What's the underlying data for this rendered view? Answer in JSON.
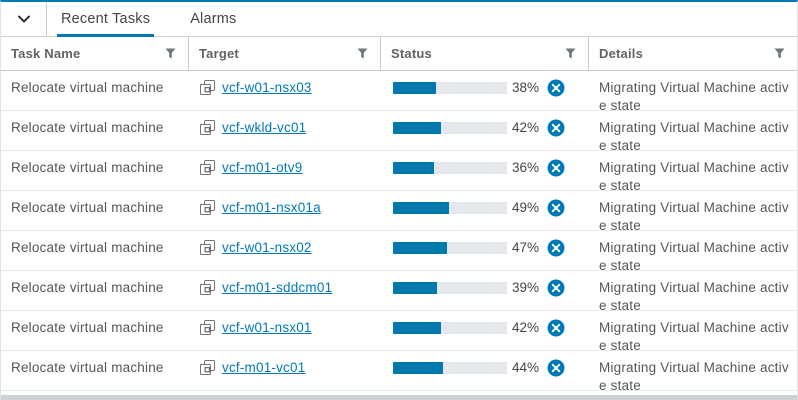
{
  "tab_bar": {
    "tabs": [
      {
        "label": "Recent Tasks",
        "active": true
      },
      {
        "label": "Alarms",
        "active": false
      }
    ]
  },
  "table": {
    "columns": [
      {
        "label": "Task Name"
      },
      {
        "label": "Target"
      },
      {
        "label": "Status"
      },
      {
        "label": "Details"
      }
    ],
    "rows": [
      {
        "task_name": "Relocate virtual machine",
        "target": "vcf-w01-nsx03",
        "progress_pct": 38,
        "progress_label": "38%",
        "details": "Migrating Virtual Machine active state"
      },
      {
        "task_name": "Relocate virtual machine",
        "target": "vcf-wkld-vc01",
        "progress_pct": 42,
        "progress_label": "42%",
        "details": "Migrating Virtual Machine active state"
      },
      {
        "task_name": "Relocate virtual machine",
        "target": "vcf-m01-otv9",
        "progress_pct": 36,
        "progress_label": "36%",
        "details": "Migrating Virtual Machine active state"
      },
      {
        "task_name": "Relocate virtual machine",
        "target": "vcf-m01-nsx01a",
        "progress_pct": 49,
        "progress_label": "49%",
        "details": "Migrating Virtual Machine active state"
      },
      {
        "task_name": "Relocate virtual machine",
        "target": "vcf-w01-nsx02",
        "progress_pct": 47,
        "progress_label": "47%",
        "details": "Migrating Virtual Machine active state"
      },
      {
        "task_name": "Relocate virtual machine",
        "target": "vcf-m01-sddcm01",
        "progress_pct": 39,
        "progress_label": "39%",
        "details": "Migrating Virtual Machine active state"
      },
      {
        "task_name": "Relocate virtual machine",
        "target": "vcf-w01-nsx01",
        "progress_pct": 42,
        "progress_label": "42%",
        "details": "Migrating Virtual Machine active state"
      },
      {
        "task_name": "Relocate virtual machine",
        "target": "vcf-m01-vc01",
        "progress_pct": 44,
        "progress_label": "44%",
        "details": "Migrating Virtual Machine active state"
      }
    ]
  },
  "icons": {
    "collapse": "chevron-down-icon",
    "target_type": "vm-icon",
    "filter": "filter-funnel-icon",
    "cancel": "cancel-circle-icon"
  },
  "colors": {
    "accent": "#0079b8",
    "link": "#0079b8",
    "progress_fill": "#0079ad",
    "progress_track": "#e4e8ec",
    "cancel_icon": "#0079b8"
  }
}
